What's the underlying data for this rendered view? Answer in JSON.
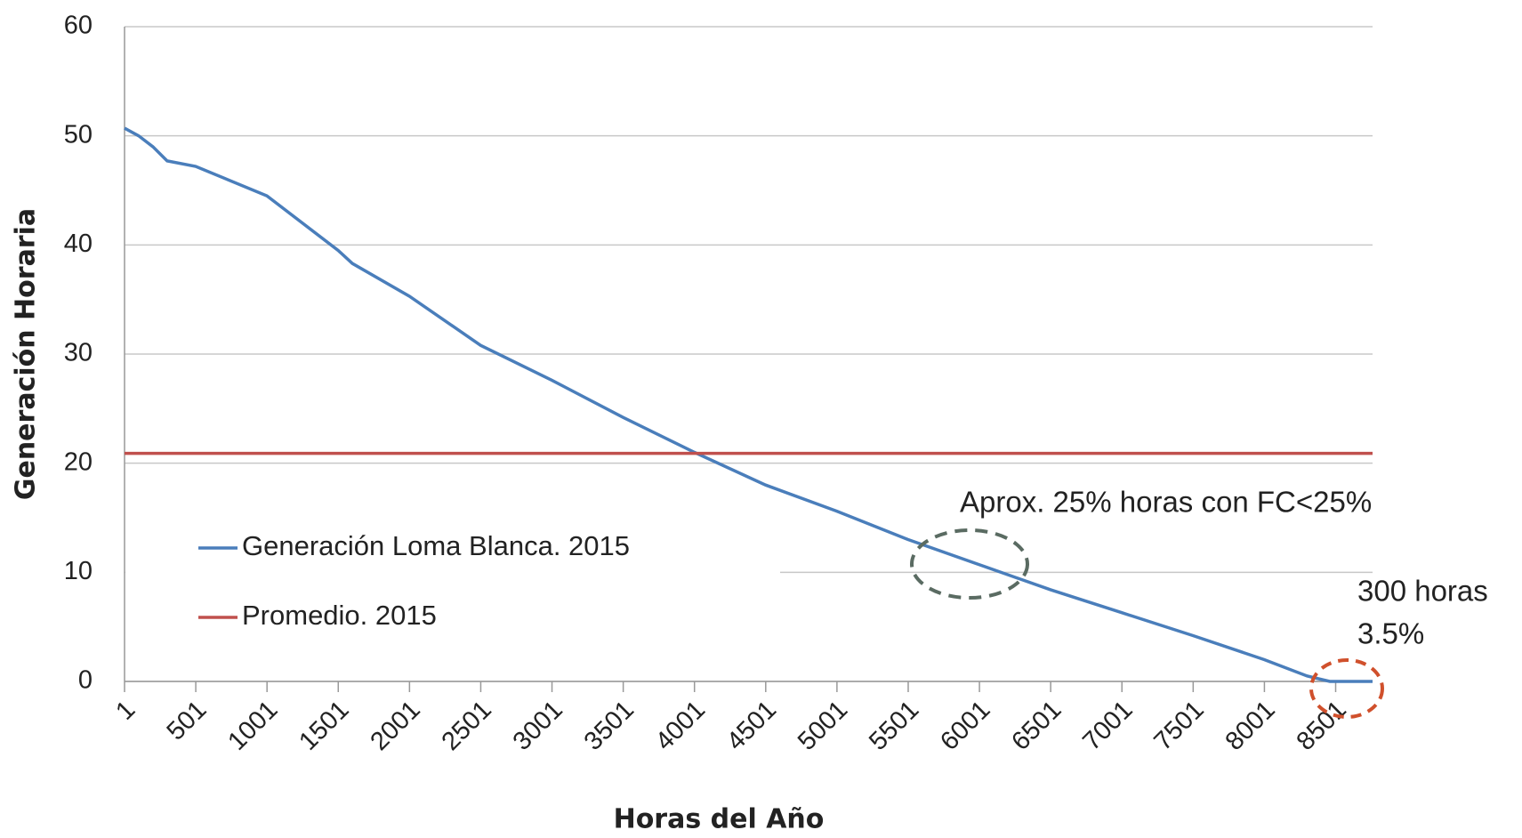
{
  "chart_data": {
    "type": "line",
    "xlabel": "Horas del Año",
    "ylabel": "Generación Horaria",
    "xlim": [
      1,
      8760
    ],
    "ylim": [
      0,
      60
    ],
    "yticks": [
      0,
      10,
      20,
      30,
      40,
      50,
      60
    ],
    "xticks": [
      1,
      501,
      1001,
      1501,
      2001,
      2501,
      3001,
      3501,
      4001,
      4501,
      5001,
      5501,
      6001,
      6501,
      7001,
      7501,
      8001,
      8501
    ],
    "grid": true,
    "legend": "lower left",
    "series": [
      {
        "name": "Generación Loma Blanca. 2015",
        "color": "#4a7ebb",
        "x": [
          1,
          100,
          200,
          300,
          500,
          1000,
          1500,
          1600,
          2000,
          2500,
          3000,
          3500,
          4000,
          4500,
          5000,
          5500,
          6000,
          6500,
          7000,
          7500,
          8000,
          8300,
          8460,
          8760
        ],
        "values": [
          50.7,
          50,
          49,
          47.7,
          47.2,
          44.5,
          39.5,
          38.3,
          35.3,
          30.8,
          27.6,
          24.2,
          21,
          18,
          15.6,
          13,
          10.7,
          8.4,
          6.3,
          4.2,
          2,
          0.5,
          0,
          0
        ]
      },
      {
        "name": "Promedio. 2015",
        "color": "#c0504d",
        "x": [
          1,
          8760
        ],
        "values": [
          20.9,
          20.9
        ]
      }
    ],
    "annotations": [
      "Aprox. 25% horas con FC<25%",
      "300 horas",
      "3.5%"
    ]
  }
}
